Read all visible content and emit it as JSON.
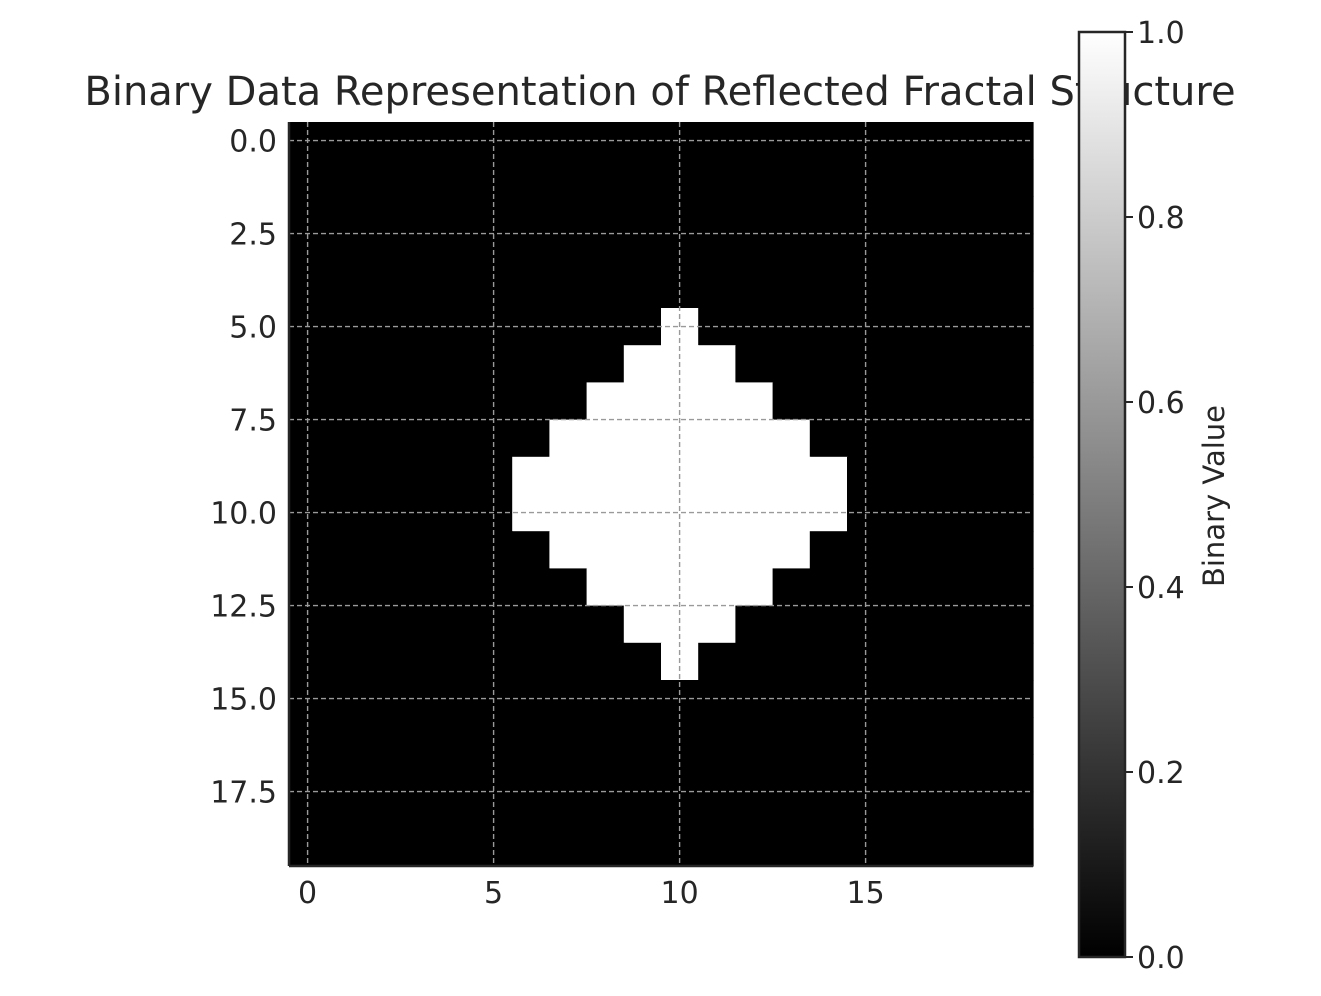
{
  "chart_data": {
    "type": "heatmap",
    "title": "Binary Data Representation of Reflected Fractal Structure",
    "xlabel": "",
    "ylabel": "",
    "grid": true,
    "colormap": "gray",
    "colors": {
      "low": "#000000",
      "high": "#ffffff",
      "grid_dark": "#9a9a9a",
      "grid_light": "#c8c8c8",
      "axes": "#262626"
    },
    "rows": 20,
    "cols": 20,
    "values": [
      [
        0,
        0,
        0,
        0,
        0,
        0,
        0,
        0,
        0,
        0,
        0,
        0,
        0,
        0,
        0,
        0,
        0,
        0,
        0,
        0
      ],
      [
        0,
        0,
        0,
        0,
        0,
        0,
        0,
        0,
        0,
        0,
        0,
        0,
        0,
        0,
        0,
        0,
        0,
        0,
        0,
        0
      ],
      [
        0,
        0,
        0,
        0,
        0,
        0,
        0,
        0,
        0,
        0,
        0,
        0,
        0,
        0,
        0,
        0,
        0,
        0,
        0,
        0
      ],
      [
        0,
        0,
        0,
        0,
        0,
        0,
        0,
        0,
        0,
        0,
        0,
        0,
        0,
        0,
        0,
        0,
        0,
        0,
        0,
        0
      ],
      [
        0,
        0,
        0,
        0,
        0,
        0,
        0,
        0,
        0,
        0,
        0,
        0,
        0,
        0,
        0,
        0,
        0,
        0,
        0,
        0
      ],
      [
        0,
        0,
        0,
        0,
        0,
        0,
        0,
        0,
        0,
        0,
        1,
        0,
        0,
        0,
        0,
        0,
        0,
        0,
        0,
        0
      ],
      [
        0,
        0,
        0,
        0,
        0,
        0,
        0,
        0,
        0,
        1,
        1,
        1,
        0,
        0,
        0,
        0,
        0,
        0,
        0,
        0
      ],
      [
        0,
        0,
        0,
        0,
        0,
        0,
        0,
        0,
        1,
        1,
        1,
        1,
        1,
        0,
        0,
        0,
        0,
        0,
        0,
        0
      ],
      [
        0,
        0,
        0,
        0,
        0,
        0,
        0,
        1,
        1,
        1,
        1,
        1,
        1,
        1,
        0,
        0,
        0,
        0,
        0,
        0
      ],
      [
        0,
        0,
        0,
        0,
        0,
        0,
        1,
        1,
        1,
        1,
        1,
        1,
        1,
        1,
        1,
        0,
        0,
        0,
        0,
        0
      ],
      [
        0,
        0,
        0,
        0,
        0,
        0,
        1,
        1,
        1,
        1,
        1,
        1,
        1,
        1,
        1,
        0,
        0,
        0,
        0,
        0
      ],
      [
        0,
        0,
        0,
        0,
        0,
        0,
        0,
        1,
        1,
        1,
        1,
        1,
        1,
        1,
        0,
        0,
        0,
        0,
        0,
        0
      ],
      [
        0,
        0,
        0,
        0,
        0,
        0,
        0,
        0,
        1,
        1,
        1,
        1,
        1,
        0,
        0,
        0,
        0,
        0,
        0,
        0
      ],
      [
        0,
        0,
        0,
        0,
        0,
        0,
        0,
        0,
        0,
        1,
        1,
        1,
        0,
        0,
        0,
        0,
        0,
        0,
        0,
        0
      ],
      [
        0,
        0,
        0,
        0,
        0,
        0,
        0,
        0,
        0,
        0,
        1,
        0,
        0,
        0,
        0,
        0,
        0,
        0,
        0,
        0
      ],
      [
        0,
        0,
        0,
        0,
        0,
        0,
        0,
        0,
        0,
        0,
        0,
        0,
        0,
        0,
        0,
        0,
        0,
        0,
        0,
        0
      ],
      [
        0,
        0,
        0,
        0,
        0,
        0,
        0,
        0,
        0,
        0,
        0,
        0,
        0,
        0,
        0,
        0,
        0,
        0,
        0,
        0
      ],
      [
        0,
        0,
        0,
        0,
        0,
        0,
        0,
        0,
        0,
        0,
        0,
        0,
        0,
        0,
        0,
        0,
        0,
        0,
        0,
        0
      ],
      [
        0,
        0,
        0,
        0,
        0,
        0,
        0,
        0,
        0,
        0,
        0,
        0,
        0,
        0,
        0,
        0,
        0,
        0,
        0,
        0
      ],
      [
        0,
        0,
        0,
        0,
        0,
        0,
        0,
        0,
        0,
        0,
        0,
        0,
        0,
        0,
        0,
        0,
        0,
        0,
        0,
        0
      ]
    ],
    "xlim": [
      -0.5,
      19.5
    ],
    "ylim": [
      19.5,
      -0.5
    ],
    "x_ticks": [
      0,
      5,
      10,
      15
    ],
    "x_tick_labels": [
      "0",
      "5",
      "10",
      "15"
    ],
    "y_ticks": [
      0,
      2.5,
      5,
      7.5,
      10,
      12.5,
      15,
      17.5
    ],
    "y_tick_labels": [
      "0.0",
      "2.5",
      "5.0",
      "7.5",
      "10.0",
      "12.5",
      "15.0",
      "17.5"
    ],
    "colorbar": {
      "label": "Binary Value",
      "range": [
        0,
        1
      ],
      "ticks": [
        0,
        0.2,
        0.4,
        0.6,
        0.8,
        1.0
      ],
      "tick_labels": [
        "0.0",
        "0.2",
        "0.4",
        "0.6",
        "0.8",
        "1.0"
      ]
    }
  }
}
